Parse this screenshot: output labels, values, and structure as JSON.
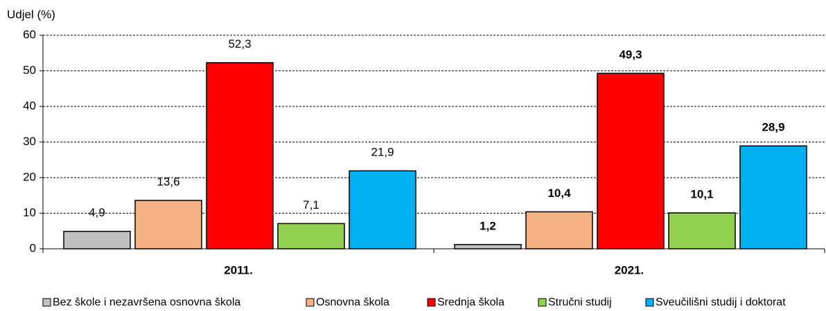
{
  "chart_data": {
    "type": "bar",
    "y_label": "Udjel (%)",
    "categories": [
      "2011.",
      "2021."
    ],
    "series": [
      {
        "name": "Bez škole i nezavršena osnovna škola",
        "color": "#c0c0c0",
        "values": [
          4.9,
          1.2
        ],
        "value_labels": [
          "4,9",
          "1,2"
        ]
      },
      {
        "name": "Osnovna škola",
        "color": "#f4b183",
        "values": [
          13.6,
          10.4
        ],
        "value_labels": [
          "13,6",
          "10,4"
        ]
      },
      {
        "name": "Srednja škola",
        "color": "#ff0000",
        "values": [
          52.3,
          49.3
        ],
        "value_labels": [
          "52,3",
          "49,3"
        ]
      },
      {
        "name": "Stručni studij",
        "color": "#92d050",
        "values": [
          7.1,
          10.1
        ],
        "value_labels": [
          "7,1",
          "10,1"
        ]
      },
      {
        "name": "Sveučilišni studij i doktorat",
        "color": "#00b0f0",
        "values": [
          21.9,
          28.9
        ],
        "value_labels": [
          "21,9",
          "28,9"
        ]
      }
    ],
    "ylim": [
      0,
      60
    ],
    "yticks": [
      0,
      10,
      20,
      30,
      40,
      50,
      60
    ],
    "grid": true,
    "legend": "bottom"
  }
}
